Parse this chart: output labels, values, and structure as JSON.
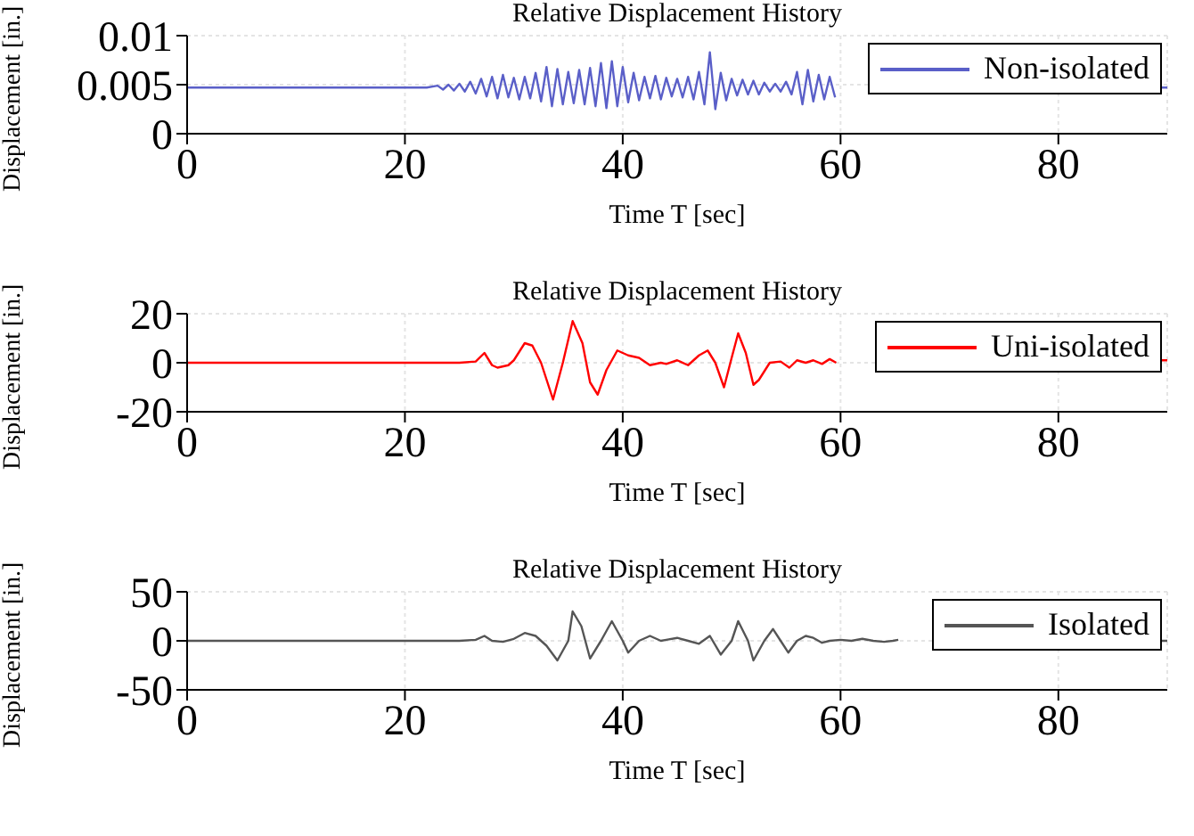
{
  "chart_data": [
    {
      "type": "line",
      "title": "Relative Displacement History",
      "xlabel": "Time T [sec]",
      "ylabel": "Displacement [in.]",
      "xlim": [
        0,
        90
      ],
      "xticks": [
        0,
        20,
        40,
        60,
        80
      ],
      "ylim": [
        0,
        0.01
      ],
      "yticks": [
        0,
        0.005,
        0.01
      ],
      "grid": true,
      "legend": "top right",
      "marker": "none",
      "series": [
        {
          "name": "Non-isolated",
          "color": "#5a5fc8",
          "x": [
            0,
            22,
            23,
            23.5,
            24,
            24.5,
            25,
            25.5,
            26,
            26.5,
            27,
            27.5,
            28,
            28.5,
            29,
            29.5,
            30,
            30.5,
            31,
            31.5,
            32,
            32.5,
            33,
            33.5,
            34,
            34.5,
            35,
            35.5,
            36,
            36.5,
            37,
            37.5,
            38,
            38.5,
            39,
            39.5,
            40,
            40.5,
            41,
            41.5,
            42,
            42.5,
            43,
            43.5,
            44,
            44.5,
            45,
            45.5,
            46,
            46.5,
            47,
            47.5,
            48,
            48.5,
            49,
            49.5,
            50,
            50.5,
            51,
            51.5,
            52,
            52.5,
            53,
            53.5,
            54,
            54.5,
            55,
            55.5,
            56,
            56.5,
            57,
            57.5,
            58,
            58.5,
            59,
            59.5,
            74,
            89,
            90
          ],
          "values": [
            0.0047,
            0.0047,
            0.0049,
            0.0045,
            0.005,
            0.0044,
            0.0051,
            0.0043,
            0.0053,
            0.0041,
            0.0056,
            0.0038,
            0.0058,
            0.0036,
            0.006,
            0.0037,
            0.0057,
            0.0035,
            0.0058,
            0.0036,
            0.0062,
            0.0033,
            0.0068,
            0.0028,
            0.0066,
            0.003,
            0.0063,
            0.0031,
            0.0065,
            0.003,
            0.0067,
            0.0028,
            0.0072,
            0.0026,
            0.0074,
            0.0028,
            0.0068,
            0.0032,
            0.0062,
            0.0034,
            0.0058,
            0.0036,
            0.0059,
            0.0035,
            0.0057,
            0.0038,
            0.0056,
            0.0037,
            0.0058,
            0.0035,
            0.0063,
            0.003,
            0.0083,
            0.0025,
            0.0062,
            0.0034,
            0.0056,
            0.0039,
            0.0055,
            0.004,
            0.0054,
            0.004,
            0.0052,
            0.0043,
            0.0051,
            0.0043,
            0.0053,
            0.004,
            0.0063,
            0.003,
            0.0065,
            0.0033,
            0.006,
            0.0035,
            0.0058,
            0.0037,
            null,
            0.0047,
            0.0047
          ]
        }
      ]
    },
    {
      "type": "line",
      "title": "Relative Displacement History",
      "xlabel": "Time T [sec]",
      "ylabel": "Displacement [in.]",
      "xlim": [
        0,
        90
      ],
      "xticks": [
        0,
        20,
        40,
        60,
        80
      ],
      "ylim": [
        -20,
        20
      ],
      "yticks": [
        -20,
        0,
        20
      ],
      "grid": true,
      "legend": "top right",
      "marker": "none",
      "series": [
        {
          "name": "Uni-isolated",
          "color": "#ff0000",
          "x": [
            0,
            25,
            26.5,
            27.3,
            28,
            28.5,
            29.5,
            30,
            31,
            31.7,
            32.5,
            33.6,
            34.5,
            35.4,
            36.3,
            37,
            37.7,
            38.5,
            39.5,
            40.5,
            41.5,
            42.5,
            43.5,
            44,
            45,
            46,
            47,
            47.8,
            48.5,
            49.3,
            50,
            50.6,
            51.3,
            52,
            52.5,
            53.5,
            54.5,
            55.3,
            56,
            56.8,
            57.5,
            58.3,
            59,
            59.6,
            75,
            89,
            90
          ],
          "values": [
            0,
            0,
            0.5,
            4,
            -1,
            -2,
            -1,
            1,
            8,
            7,
            0,
            -15,
            0,
            17,
            8,
            -8,
            -13,
            -3,
            5,
            3,
            2,
            -1,
            0,
            -0.5,
            1,
            -1,
            3,
            5,
            0,
            -10,
            2,
            12,
            4,
            -9,
            -7,
            0,
            0.5,
            -2,
            1,
            0,
            1,
            -0.5,
            1.5,
            0,
            null,
            1,
            1
          ]
        }
      ]
    },
    {
      "type": "line",
      "title": "Relative Displacement History",
      "xlabel": "Time T [sec]",
      "ylabel": "Displacement [in.]",
      "xlim": [
        0,
        90
      ],
      "xticks": [
        0,
        20,
        40,
        60,
        80
      ],
      "ylim": [
        -50,
        50
      ],
      "yticks": [
        -50,
        0,
        50
      ],
      "grid": true,
      "legend": "top right",
      "marker": "none",
      "series": [
        {
          "name": "Isolated",
          "color": "#555555",
          "x": [
            0,
            25,
            26.5,
            27.3,
            28,
            29,
            30,
            31,
            32,
            33,
            34,
            35,
            35.4,
            36.2,
            37,
            38,
            39,
            40,
            40.5,
            41.5,
            42.5,
            43.5,
            44,
            45,
            46,
            47,
            48,
            49,
            50,
            50.6,
            51.5,
            52,
            53,
            53.8,
            54.5,
            55.2,
            56,
            56.8,
            57.5,
            58.3,
            59,
            60,
            61,
            62,
            63,
            64,
            64.8,
            65.3,
            77,
            89,
            90
          ],
          "values": [
            0,
            0,
            1,
            5,
            0,
            -1,
            2,
            8,
            5,
            -5,
            -20,
            0,
            30,
            15,
            -18,
            0,
            20,
            0,
            -12,
            0,
            5,
            0,
            1,
            3,
            0,
            -3,
            5,
            -14,
            0,
            20,
            0,
            -20,
            0,
            12,
            0,
            -12,
            0,
            5,
            3,
            -2,
            0,
            1,
            0,
            2,
            0,
            -1,
            0,
            1,
            null,
            0,
            0
          ]
        }
      ]
    }
  ]
}
